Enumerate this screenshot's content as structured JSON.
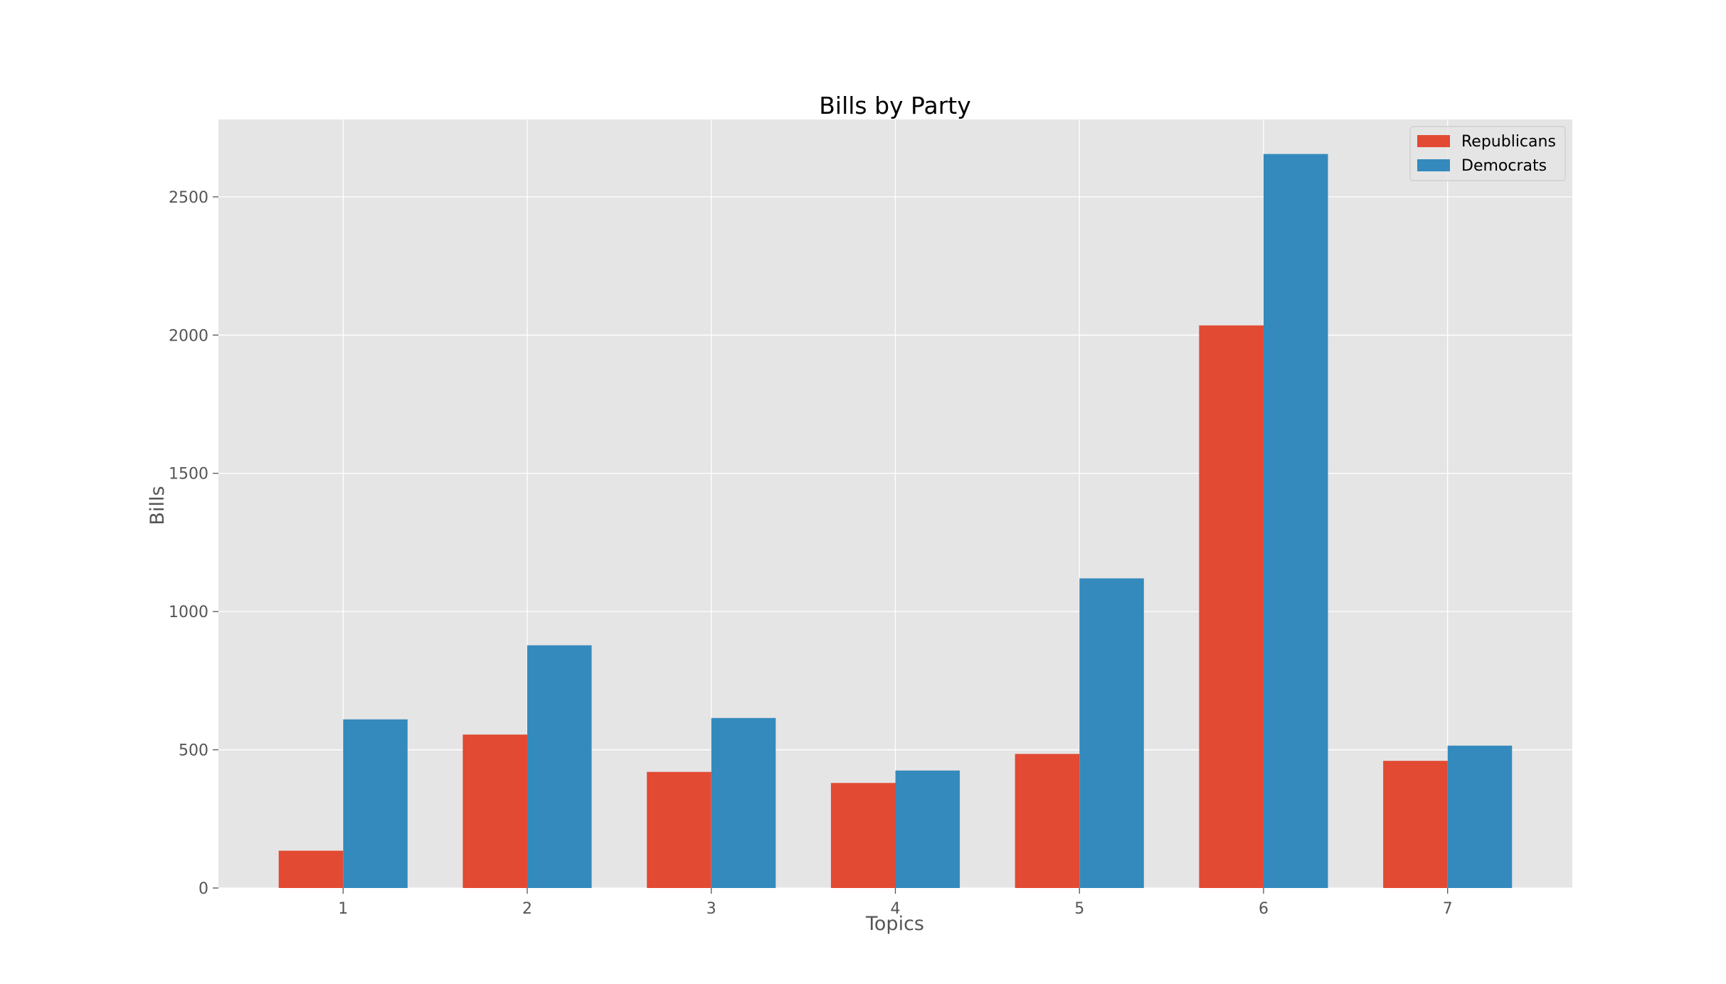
{
  "chart_data": {
    "type": "bar",
    "title": "Bills by Party",
    "xlabel": "Topics",
    "ylabel": "Bills",
    "categories": [
      "1",
      "2",
      "3",
      "4",
      "5",
      "6",
      "7"
    ],
    "series": [
      {
        "name": "Republicans",
        "color": "#E24A33",
        "values": [
          135,
          555,
          420,
          380,
          485,
          2035,
          460
        ]
      },
      {
        "name": "Democrats",
        "color": "#348ABD",
        "values": [
          610,
          878,
          615,
          425,
          1120,
          2655,
          515
        ]
      }
    ],
    "ylim": [
      0,
      2780
    ],
    "yticks": [
      0,
      500,
      1000,
      1500,
      2000,
      2500
    ],
    "grid": true,
    "legend_position": "top-right",
    "background_color": "#E5E5E5"
  }
}
